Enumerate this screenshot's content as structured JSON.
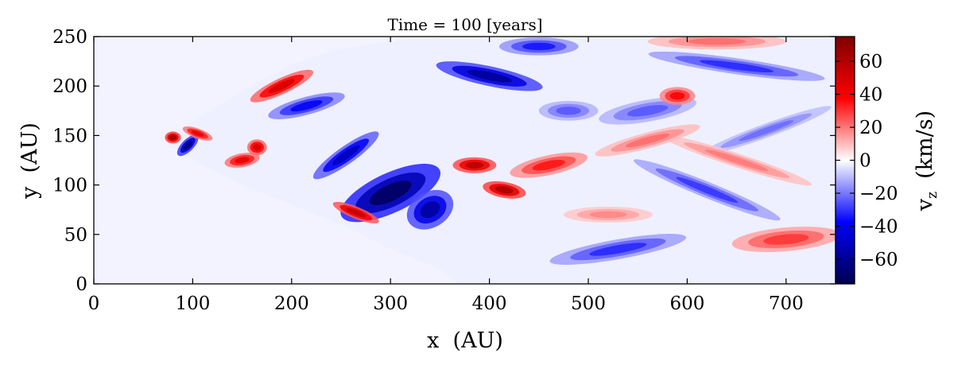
{
  "chart_data": {
    "type": "heatmap",
    "title": "Time = 100 [years]",
    "xlabel": "x  (AU)",
    "ylabel": "y  (AU)",
    "xlim": [
      0,
      750
    ],
    "ylim": [
      0,
      250
    ],
    "x_ticks": [
      0,
      100,
      200,
      300,
      400,
      500,
      600,
      700
    ],
    "y_ticks": [
      0,
      50,
      100,
      150,
      200,
      250
    ],
    "colorbar": {
      "label": "v_z  (km/s)",
      "label_main": "v",
      "label_sub": "z",
      "label_unit": "(km/s)",
      "range": [
        -75,
        75
      ],
      "ticks": [
        -60,
        -40,
        -20,
        0,
        20,
        40,
        60
      ],
      "tick_labels": [
        "−60",
        "−40",
        "−20",
        "0",
        "20",
        "40",
        "60"
      ],
      "colormap": "seismic"
    },
    "background_value": 0,
    "domain_outline": {
      "description": "cone-shaped turbulent region opening to the right from apex near x=75, y=145",
      "apex": [
        75,
        145
      ],
      "upper_edge": [
        [
          75,
          150
        ],
        [
          110,
          170
        ],
        [
          150,
          195
        ],
        [
          200,
          222
        ],
        [
          250,
          238
        ],
        [
          300,
          245
        ],
        [
          360,
          250
        ],
        [
          750,
          250
        ]
      ],
      "lower_edge": [
        [
          75,
          140
        ],
        [
          110,
          120
        ],
        [
          150,
          100
        ],
        [
          200,
          80
        ],
        [
          250,
          60
        ],
        [
          300,
          35
        ],
        [
          350,
          15
        ],
        [
          370,
          0
        ],
        [
          750,
          0
        ]
      ]
    },
    "features": [
      {
        "name": "blue jet core",
        "x": 300,
        "y": 92,
        "radius_x": 55,
        "radius_y": 20,
        "angle": 25,
        "value": -72
      },
      {
        "name": "blue lobe",
        "x": 340,
        "y": 75,
        "radius_x": 25,
        "radius_y": 18,
        "angle": 30,
        "value": -58
      },
      {
        "name": "blue filament",
        "x": 255,
        "y": 130,
        "radius_x": 40,
        "radius_y": 9,
        "angle": 35,
        "value": -52
      },
      {
        "name": "blue upper band",
        "x": 400,
        "y": 210,
        "radius_x": 55,
        "radius_y": 10,
        "angle": -12,
        "value": -60
      },
      {
        "name": "blue top patch",
        "x": 450,
        "y": 240,
        "radius_x": 40,
        "radius_y": 9,
        "angle": 0,
        "value": -35
      },
      {
        "name": "blue apex knot",
        "x": 95,
        "y": 140,
        "radius_x": 14,
        "radius_y": 6,
        "angle": 45,
        "value": -65
      },
      {
        "name": "blue upper wisps",
        "x": 215,
        "y": 180,
        "radius_x": 40,
        "radius_y": 9,
        "angle": 15,
        "value": -40
      },
      {
        "name": "blue right band 1",
        "x": 650,
        "y": 220,
        "radius_x": 90,
        "radius_y": 8,
        "angle": -8,
        "value": -32
      },
      {
        "name": "blue right band 2",
        "x": 620,
        "y": 95,
        "radius_x": 80,
        "radius_y": 8,
        "angle": -22,
        "value": -30
      },
      {
        "name": "blue right band 3",
        "x": 680,
        "y": 155,
        "radius_x": 70,
        "radius_y": 7,
        "angle": 20,
        "value": -22
      },
      {
        "name": "blue lower right",
        "x": 530,
        "y": 35,
        "radius_x": 70,
        "radius_y": 10,
        "angle": 10,
        "value": -32
      },
      {
        "name": "blue right center",
        "x": 560,
        "y": 175,
        "radius_x": 50,
        "radius_y": 11,
        "angle": 10,
        "value": -25
      },
      {
        "name": "blue 480-170",
        "x": 480,
        "y": 175,
        "radius_x": 30,
        "radius_y": 10,
        "angle": 0,
        "value": -25
      },
      {
        "name": "red apex",
        "x": 80,
        "y": 148,
        "radius_x": 8,
        "radius_y": 6,
        "angle": 0,
        "value": 65
      },
      {
        "name": "red apex arc",
        "x": 105,
        "y": 152,
        "radius_x": 16,
        "radius_y": 5,
        "angle": -20,
        "value": 45
      },
      {
        "name": "red upper filament",
        "x": 190,
        "y": 200,
        "radius_x": 35,
        "radius_y": 8,
        "angle": 25,
        "value": 50
      },
      {
        "name": "red knots",
        "x": 150,
        "y": 125,
        "radius_x": 18,
        "radius_y": 7,
        "angle": 10,
        "value": 45
      },
      {
        "name": "red knots 2",
        "x": 165,
        "y": 138,
        "radius_x": 10,
        "radius_y": 8,
        "angle": 0,
        "value": 50
      },
      {
        "name": "red lower streak",
        "x": 265,
        "y": 72,
        "radius_x": 25,
        "radius_y": 6,
        "angle": -22,
        "value": 55
      },
      {
        "name": "red center 1",
        "x": 385,
        "y": 120,
        "radius_x": 22,
        "radius_y": 8,
        "angle": 0,
        "value": 58
      },
      {
        "name": "red center 2",
        "x": 415,
        "y": 95,
        "radius_x": 22,
        "radius_y": 8,
        "angle": -10,
        "value": 62
      },
      {
        "name": "red center 3",
        "x": 460,
        "y": 120,
        "radius_x": 40,
        "radius_y": 10,
        "angle": 12,
        "value": 35
      },
      {
        "name": "red right lobe",
        "x": 700,
        "y": 45,
        "radius_x": 55,
        "radius_y": 12,
        "angle": 5,
        "value": 30
      },
      {
        "name": "red 590-190",
        "x": 590,
        "y": 190,
        "radius_x": 18,
        "radius_y": 9,
        "angle": 0,
        "value": 40
      },
      {
        "name": "red top right",
        "x": 630,
        "y": 245,
        "radius_x": 70,
        "radius_y": 8,
        "angle": 0,
        "value": 22
      },
      {
        "name": "red right band",
        "x": 650,
        "y": 125,
        "radius_x": 80,
        "radius_y": 7,
        "angle": -18,
        "value": 20
      },
      {
        "name": "red band 560-150",
        "x": 560,
        "y": 145,
        "radius_x": 55,
        "radius_y": 8,
        "angle": 15,
        "value": 22
      },
      {
        "name": "red band 520-70",
        "x": 520,
        "y": 70,
        "radius_x": 45,
        "radius_y": 8,
        "angle": 0,
        "value": 18
      }
    ]
  }
}
